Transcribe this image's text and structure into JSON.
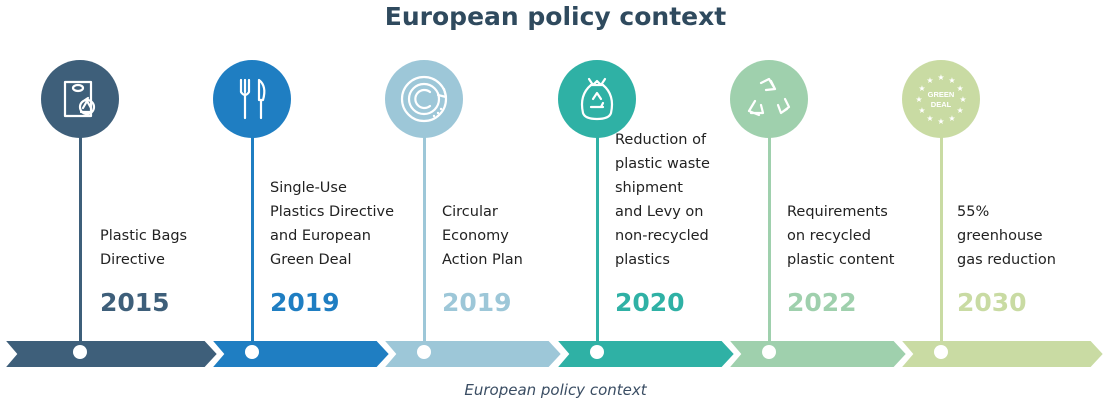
{
  "title": "European policy context",
  "caption": "European policy context",
  "milestones": [
    {
      "year": "2015",
      "lines": [
        "Plastic Bags",
        "Directive"
      ],
      "color": "#3e5f7a",
      "icon": "plastic-bag-recycle-icon"
    },
    {
      "year": "2019",
      "lines": [
        "Single-Use",
        "Plastics Directive",
        "and European",
        "Green Deal"
      ],
      "color": "#1f7ec2",
      "icon": "fork-knife-icon"
    },
    {
      "year": "2019",
      "lines": [
        "Circular",
        "Economy",
        "Action Plan"
      ],
      "color": "#9dc7d8",
      "icon": "circular-economy-icon"
    },
    {
      "year": "2020",
      "lines": [
        "Reduction of",
        "plastic waste",
        "shipment",
        "and Levy on",
        "non-recycled",
        "plastics"
      ],
      "color": "#2fb1a5",
      "icon": "recycle-bag-icon"
    },
    {
      "year": "2022",
      "lines": [
        "Requirements",
        "on recycled",
        "plastic content"
      ],
      "color": "#9fd0ad",
      "icon": "recycle-arrows-icon"
    },
    {
      "year": "2030",
      "lines": [
        "55%",
        "greenhouse",
        "gas reduction"
      ],
      "color": "#c9dba3",
      "icon": "green-deal-icon",
      "badge_lines": [
        "GREEN",
        "DEAL"
      ]
    }
  ]
}
